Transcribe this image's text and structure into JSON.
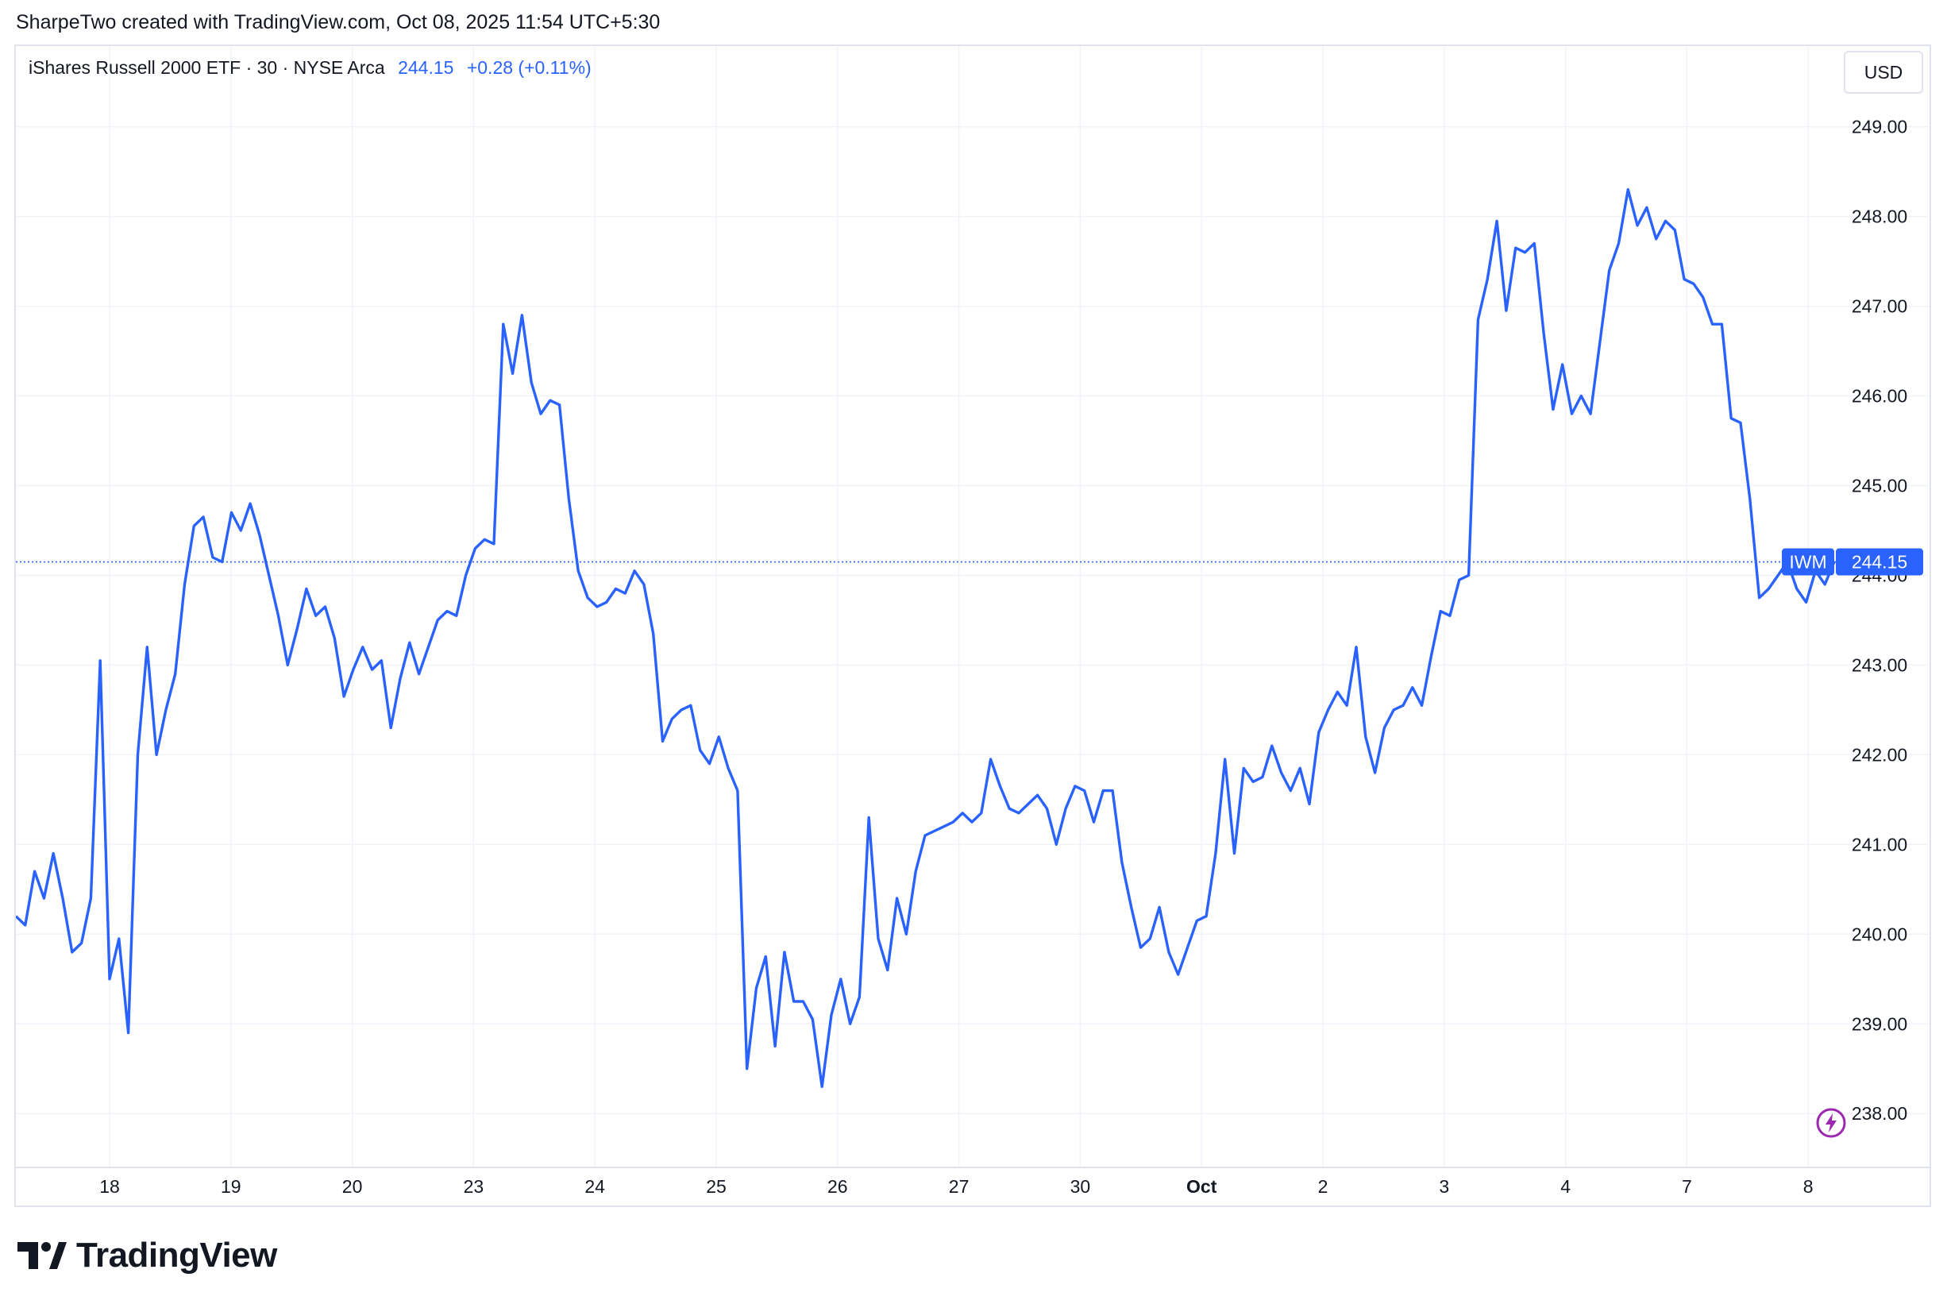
{
  "caption": "SharpeTwo created with TradingView.com, Oct 08, 2025 11:54 UTC+5:30",
  "legend": {
    "symbol_text": "iShares Russell 2000 ETF · 30 · NYSE Arca",
    "last_price": "244.15",
    "change": "+0.28 (+0.11%)"
  },
  "currency_label": "USD",
  "price_badge": {
    "ticker": "IWM",
    "price": "244.15"
  },
  "brand": "TradingView",
  "colors": {
    "line": "#2962ff",
    "grid": "#f0f3fa",
    "border": "#e0e3eb",
    "text": "#131722",
    "bolt": "#9c27b0"
  },
  "icons": {
    "logo": "tradingview-logo-icon",
    "bolt": "lightning-bolt-icon"
  },
  "chart_data": {
    "type": "line",
    "series": [
      {
        "name": "IWM",
        "values": [
          240.2,
          240.1,
          240.7,
          240.4,
          240.9,
          240.4,
          239.8,
          239.9,
          240.4,
          243.05,
          239.5,
          239.95,
          238.9,
          242.0,
          243.2,
          242.0,
          242.5,
          242.9,
          243.9,
          244.55,
          244.65,
          244.2,
          244.15,
          244.7,
          244.5,
          244.8,
          244.45,
          244.0,
          243.55,
          243.0,
          243.4,
          243.85,
          243.55,
          243.65,
          243.3,
          242.65,
          242.95,
          243.2,
          242.95,
          243.05,
          242.3,
          242.85,
          243.25,
          242.9,
          243.2,
          243.5,
          243.6,
          243.55,
          244.0,
          244.3,
          244.4,
          244.35,
          246.8,
          246.25,
          246.9,
          246.15,
          245.8,
          245.95,
          245.9,
          244.85,
          244.05,
          243.75,
          243.65,
          243.7,
          243.85,
          243.8,
          244.05,
          243.9,
          243.35,
          242.15,
          242.4,
          242.5,
          242.55,
          242.05,
          241.9,
          242.2,
          241.85,
          241.6,
          238.5,
          239.4,
          239.75,
          238.75,
          239.8,
          239.25,
          239.25,
          239.05,
          238.3,
          239.1,
          239.5,
          239.0,
          239.3,
          241.3,
          239.95,
          239.6,
          240.4,
          240.0,
          240.7,
          241.1,
          241.15,
          241.2,
          241.25,
          241.35,
          241.25,
          241.35,
          241.95,
          241.65,
          241.4,
          241.35,
          241.45,
          241.55,
          241.4,
          241.0,
          241.4,
          241.65,
          241.6,
          241.25,
          241.6,
          241.6,
          240.8,
          240.3,
          239.85,
          239.95,
          240.3,
          239.8,
          239.55,
          239.85,
          240.15,
          240.2,
          240.9,
          241.95,
          240.9,
          241.85,
          241.7,
          241.75,
          242.1,
          241.8,
          241.6,
          241.85,
          241.45,
          242.25,
          242.5,
          242.7,
          242.55,
          243.2,
          242.2,
          241.8,
          242.3,
          242.5,
          242.55,
          242.75,
          242.55,
          243.1,
          243.6,
          243.55,
          243.95,
          244.0,
          246.85,
          247.3,
          247.95,
          246.95,
          247.65,
          247.6,
          247.7,
          246.7,
          245.85,
          246.35,
          245.8,
          246.0,
          245.8,
          246.6,
          247.4,
          247.7,
          248.3,
          247.9,
          248.1,
          247.75,
          247.95,
          247.85,
          247.3,
          247.25,
          247.1,
          246.8,
          246.8,
          245.75,
          245.7,
          244.85,
          243.75,
          243.85,
          244.0,
          244.15,
          243.85,
          243.7,
          244.05,
          243.9,
          244.15
        ]
      }
    ],
    "x_ticks": [
      "18",
      "19",
      "20",
      "23",
      "24",
      "25",
      "26",
      "27",
      "30",
      "Oct",
      "2",
      "3",
      "4",
      "7",
      "8"
    ],
    "y_ticks": [
      "238.00",
      "239.00",
      "240.00",
      "241.00",
      "242.00",
      "243.00",
      "244.00",
      "245.00",
      "246.00",
      "247.00",
      "248.00",
      "249.00"
    ],
    "ylim": [
      237.4,
      249.9
    ],
    "last_value": 244.15,
    "grid": true,
    "axis_position": "right"
  }
}
